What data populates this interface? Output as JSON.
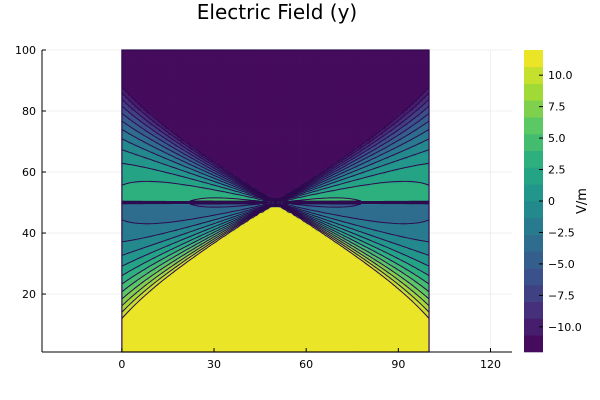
{
  "chart_data": {
    "type": "contour",
    "title": "Electric Field (y)",
    "xlabel": "",
    "ylabel": "",
    "x_domain": [
      0,
      100
    ],
    "y_domain": [
      1,
      100
    ],
    "xlim": [
      -26,
      127
    ],
    "ylim": [
      1,
      100
    ],
    "xticks": [
      0,
      30,
      60,
      90,
      120
    ],
    "yticks": [
      20,
      40,
      60,
      80,
      100
    ],
    "field_range": [
      -12,
      12
    ],
    "colorbar": {
      "label": "V/m",
      "colormap": "viridis",
      "range": [
        -12,
        12
      ],
      "ticks": [
        10.0,
        7.5,
        5.0,
        2.5,
        0,
        -2.5,
        -5.0,
        -7.5,
        -10.0
      ],
      "tick_labels": [
        "10.0",
        "7.5",
        "5.0",
        "2.5",
        "0",
        "−2.5",
        "−5.0",
        "−7.5",
        "−10.0"
      ],
      "levels": [
        -12,
        -10.67,
        -9.33,
        -8,
        -6.67,
        -5.33,
        -4,
        -2.67,
        -1.33,
        0,
        1.33,
        2.67,
        4,
        5.33,
        6.67,
        8,
        9.33,
        10.67,
        12
      ]
    },
    "grid": true,
    "contour_lines": true
  }
}
